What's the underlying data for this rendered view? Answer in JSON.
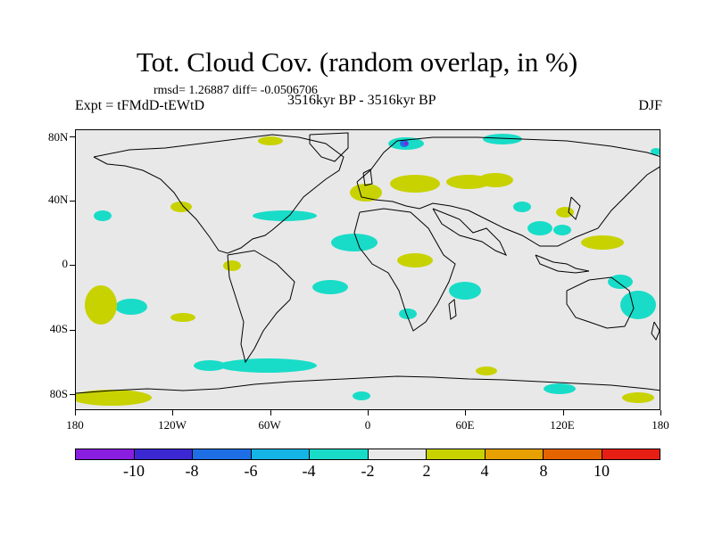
{
  "title": "Tot. Cloud Cov. (random overlap, in %)",
  "stats": "rmsd= 1.26887 diff= -0.0506706",
  "expt": "Expt = tFMdD-tEWtD",
  "period": "3516kyr BP - 3516kyr BP",
  "season": "DJF",
  "map": {
    "lat_labels": [
      "80N",
      "40N",
      "0",
      "40S",
      "80S"
    ],
    "lon_labels": [
      "180",
      "120W",
      "60W",
      "0",
      "60E",
      "120E",
      "180"
    ],
    "background_color": "#e8e8e8"
  },
  "colorbar": {
    "labels": [
      "-10",
      "-8",
      "-6",
      "-4",
      "-2",
      "2",
      "4",
      "8",
      "10"
    ],
    "colors": [
      "#8a1ee0",
      "#3c28d2",
      "#1e6ee6",
      "#14b4e6",
      "#18dcc8",
      "#e8e8e8",
      "#c8d200",
      "#e6a000",
      "#e66400",
      "#e61e14"
    ]
  }
}
